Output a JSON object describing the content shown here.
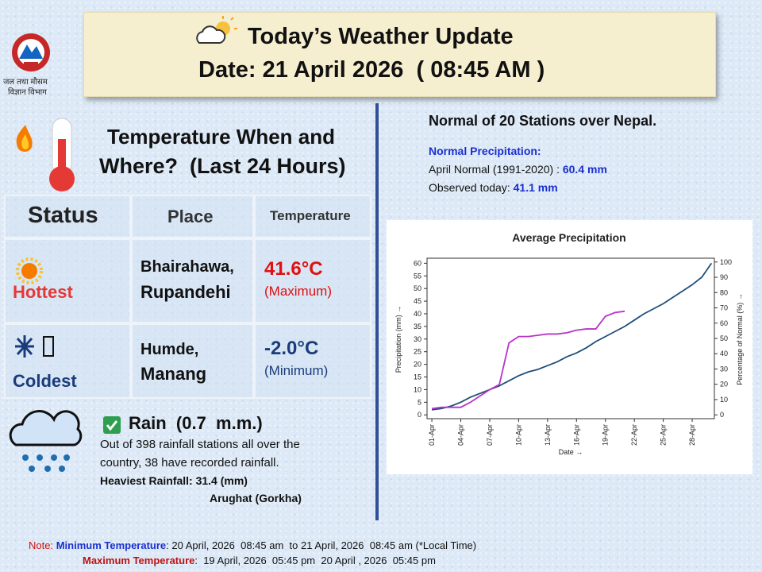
{
  "logo": {
    "line1": "जल तथा मौसम",
    "line2": "विज्ञान विभाग"
  },
  "header": {
    "title": "Today’s Weather Update",
    "date": "Date: 21 April 2026  ( 08:45 AM )"
  },
  "temperature": {
    "heading_line1": "Temperature When and",
    "heading_line2": "Where?  (Last 24 Hours)",
    "table": {
      "columns": [
        "Status",
        "Place",
        "Temperature"
      ],
      "rows": [
        [
          "Hottest",
          "Bhairahawa,",
          "Rupandehi",
          "41.6°C",
          "(Maximum)"
        ],
        [
          "Coldest",
          "Humde,",
          "Manang",
          "-2.0°C",
          "(Minimum)"
        ]
      ]
    }
  },
  "rain": {
    "title": "Rain  (0.7  m.m.)",
    "text_line1": "Out of 398 rainfall stations all over the",
    "text_line2": "country, 38 have recorded rainfall.",
    "heaviest": "Heaviest Rainfall: 31.4 (mm)",
    "heaviest_place": "Arughat (Gorkha)"
  },
  "normal": {
    "title": "Normal of 20 Stations over Nepal.",
    "subtitle": "Normal Precipitation:",
    "april_label": "April Normal (1991-2020) :",
    "april_value": "60.4 mm",
    "observed_label": "Observed today:",
    "observed_value": "41.1 mm"
  },
  "chart_data": {
    "type": "line",
    "title": "Average Precipitation",
    "x_label": "Date →",
    "y_label": "Precipitation (mm) →",
    "y2_label": "Percentage of Normal (%) →",
    "x": [
      1,
      2,
      3,
      4,
      5,
      6,
      7,
      8,
      9,
      10,
      11,
      12,
      13,
      14,
      15,
      16,
      17,
      18,
      19,
      20,
      21,
      22,
      23,
      24,
      25,
      26,
      27,
      28,
      29,
      30
    ],
    "xlim": [
      0.5,
      30.3
    ],
    "xticks": [
      {
        "value": 1,
        "label": "01-Apr"
      },
      {
        "value": 4,
        "label": "04-Apr"
      },
      {
        "value": 7,
        "label": "07-Apr"
      },
      {
        "value": 10,
        "label": "10-Apr"
      },
      {
        "value": 13,
        "label": "13-Apr"
      },
      {
        "value": 16,
        "label": "16-Apr"
      },
      {
        "value": 19,
        "label": "19-Apr"
      },
      {
        "value": 22,
        "label": "22-Apr"
      },
      {
        "value": 25,
        "label": "25-Apr"
      },
      {
        "value": 28,
        "label": "28-Apr"
      }
    ],
    "ylim": [
      -1.5,
      62
    ],
    "yticks": [
      0,
      5,
      10,
      15,
      20,
      25,
      30,
      35,
      40,
      45,
      50,
      55,
      60
    ],
    "y2lim": [
      -2.5,
      102.5
    ],
    "y2ticks": [
      0,
      10,
      20,
      30,
      40,
      50,
      60,
      70,
      80,
      90,
      100
    ],
    "series": [
      {
        "color": "#1f4e79",
        "values": [
          2,
          2.5,
          3.5,
          5,
          7,
          8.5,
          10,
          11.5,
          13.5,
          15.5,
          17,
          18,
          19.5,
          21,
          23,
          24.5,
          26.5,
          29,
          31,
          33,
          35,
          37.5,
          40,
          42,
          44,
          46.5,
          49,
          51.5,
          54.5,
          60
        ]
      },
      {
        "color": "#b833c9",
        "values": [
          2.5,
          3,
          3,
          3,
          5,
          7.5,
          10,
          12,
          28.5,
          31,
          31,
          31.5,
          32,
          32,
          32.5,
          33.5,
          34,
          34,
          39,
          40.5,
          41,
          null,
          null,
          null,
          null,
          null,
          null,
          null,
          null,
          null
        ]
      }
    ]
  },
  "note": {
    "label": "Note:",
    "min_label": "Minimum Temperature",
    "min_text": ": 20 April, 2026  08:45 am  to 21 April, 2026  08:45 am (*Local Time)",
    "max_label": "Maximum Temperature",
    "max_text": ":  19 April, 2026  05:45 pm  20 April , 2026  05:45 pm"
  }
}
